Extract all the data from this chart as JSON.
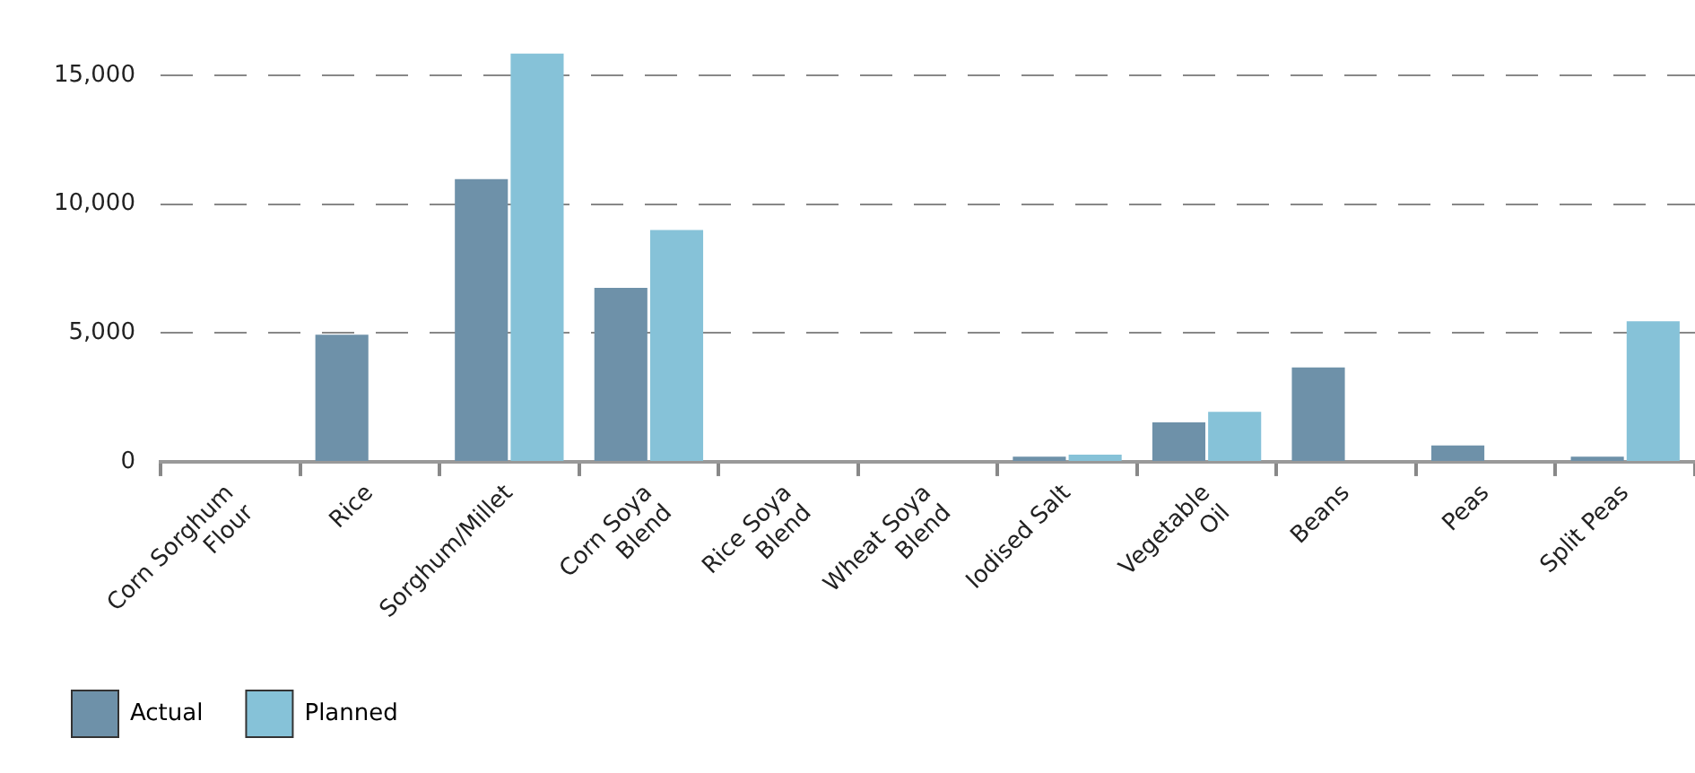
{
  "chart_data": {
    "type": "bar",
    "categories": [
      "Corn Sorghum Flour",
      "Rice",
      "Sorghum/Millet",
      "Corn Soya Blend",
      "Rice Soya Blend",
      "Wheat Soya Blend",
      "Iodised Salt",
      "Vegetable Oil",
      "Beans",
      "Peas",
      "Split Peas"
    ],
    "series": [
      {
        "name": "Actual",
        "color": "#6e91a9",
        "values": [
          0,
          4930,
          10970,
          6750,
          0,
          0,
          200,
          1530,
          3660,
          630,
          200
        ]
      },
      {
        "name": "Planned",
        "color": "#86c2d8",
        "values": [
          0,
          0,
          15850,
          9000,
          0,
          0,
          280,
          1940,
          0,
          0,
          5450
        ]
      }
    ],
    "ylim": [
      0,
      15850
    ],
    "yticks": [
      0,
      {
        "value": 5000,
        "label": "5,000"
      },
      {
        "value": 10000,
        "label": "10,000"
      },
      {
        "value": 15000,
        "label": "15,000"
      }
    ],
    "grid": "y",
    "legend": "bottom"
  }
}
